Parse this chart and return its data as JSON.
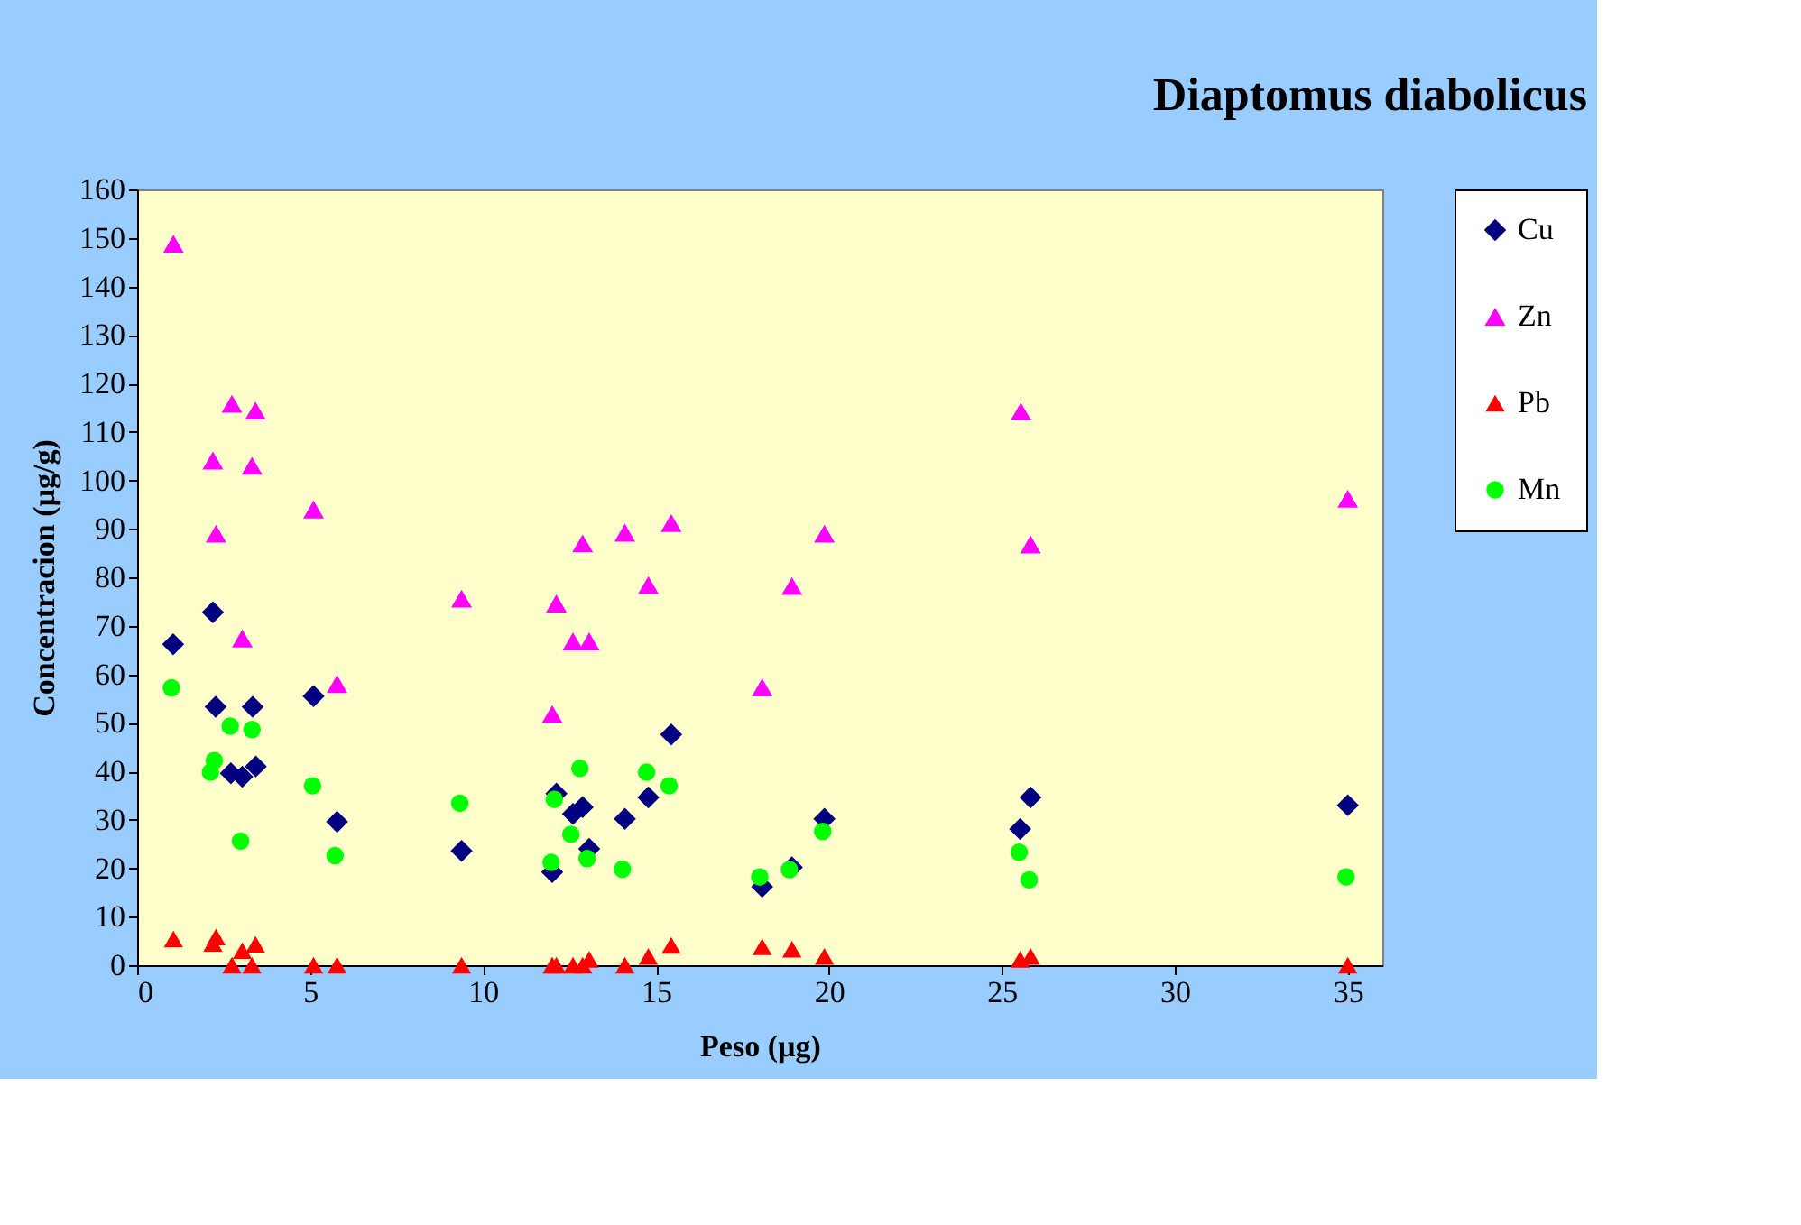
{
  "chart_data": {
    "type": "scatter",
    "title": "Diaptomus diabolicus",
    "xlabel": "Peso (µg)",
    "ylabel": "Concentracion (µg/g)",
    "xlim": [
      0,
      36
    ],
    "xticks": [
      0,
      5,
      10,
      15,
      20,
      25,
      30,
      35
    ],
    "ylim": [
      0,
      160
    ],
    "yticks": [
      0,
      10,
      20,
      30,
      40,
      50,
      60,
      70,
      80,
      90,
      100,
      110,
      120,
      130,
      140,
      150,
      160
    ],
    "grid": false,
    "legend": "right",
    "series": [
      {
        "name": "Cu",
        "color": "#000080",
        "marker": "diamond",
        "x": [
          1.04,
          2.19,
          2.27,
          2.71,
          3.04,
          3.34,
          3.43,
          5.1,
          5.78,
          9.38,
          12.0,
          12.12,
          12.6,
          12.88,
          13.07,
          14.1,
          14.78,
          15.44,
          18.07,
          18.93,
          19.87,
          25.53,
          25.83,
          35.0
        ],
        "values": [
          66.2,
          72.8,
          53.3,
          39.6,
          38.9,
          53.3,
          41.0,
          55.5,
          29.6,
          23.6,
          19.2,
          35.4,
          31.2,
          32.6,
          24.0,
          30.2,
          34.6,
          47.6,
          16.2,
          20.2,
          30.2,
          28.1,
          34.6,
          33.0
        ]
      },
      {
        "name": "Zn",
        "color": "#ff00ff",
        "marker": "triangle",
        "x": [
          1.05,
          2.19,
          2.28,
          2.74,
          3.04,
          3.32,
          3.42,
          5.1,
          5.78,
          9.38,
          12.0,
          12.12,
          12.6,
          12.88,
          13.07,
          14.1,
          14.78,
          15.44,
          18.07,
          18.93,
          19.87,
          25.55,
          25.83,
          35.0
        ],
        "values": [
          148.8,
          104.1,
          89.0,
          115.8,
          67.4,
          103.0,
          114.4,
          94.0,
          58.0,
          75.6,
          51.8,
          74.6,
          66.8,
          87.0,
          66.8,
          89.2,
          78.4,
          91.2,
          57.3,
          78.2,
          89.0,
          114.2,
          86.8,
          96.2
        ]
      },
      {
        "name": "Pb",
        "color": "#ff0000",
        "marker": "triangle",
        "x": [
          1.05,
          2.19,
          2.28,
          2.74,
          3.04,
          3.32,
          3.42,
          5.1,
          5.78,
          9.38,
          12.0,
          12.12,
          12.6,
          12.88,
          13.07,
          14.1,
          14.78,
          15.44,
          18.07,
          18.93,
          19.87,
          25.53,
          25.83,
          35.0
        ],
        "values": [
          5.4,
          4.5,
          5.8,
          0,
          3.0,
          0,
          4.3,
          0,
          0,
          0,
          0,
          0,
          0,
          0,
          1.2,
          0,
          1.8,
          4.1,
          3.8,
          3.3,
          1.8,
          1.2,
          1.8,
          0
        ]
      },
      {
        "name": "Mn",
        "color": "#00ff00",
        "marker": "circle",
        "x": [
          0.99,
          2.12,
          2.23,
          2.69,
          2.99,
          3.32,
          5.07,
          5.72,
          9.33,
          11.97,
          12.06,
          12.54,
          12.8,
          13.01,
          14.03,
          14.73,
          15.38,
          18.0,
          18.86,
          19.82,
          25.5,
          25.79,
          34.95
        ],
        "values": [
          57.2,
          39.8,
          42.2,
          49.3,
          25.6,
          48.6,
          37.0,
          22.6,
          33.4,
          21.2,
          34.2,
          27.0,
          40.6,
          22.0,
          19.8,
          39.8,
          37.0,
          18.2,
          19.7,
          27.6,
          23.3,
          17.6,
          18.2
        ]
      }
    ]
  }
}
